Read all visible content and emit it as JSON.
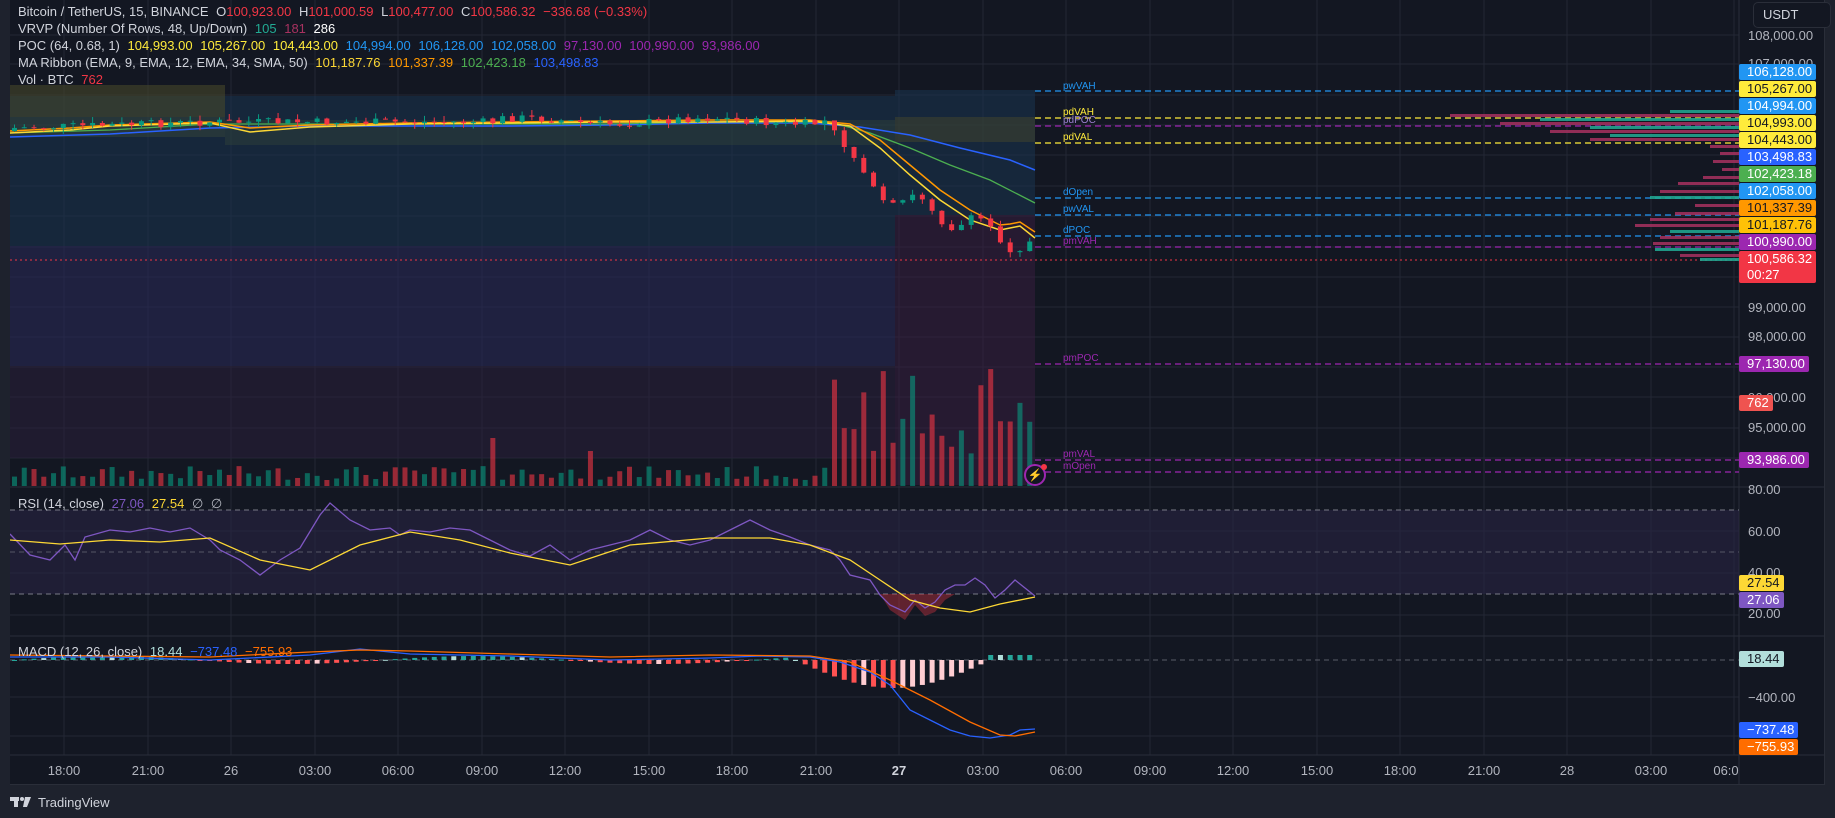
{
  "symbol": {
    "name": "Bitcoin / TetherUS",
    "interval": "15",
    "exchange": "BINANCE",
    "title": "Bitcoin / TetherUS, 15, BINANCE",
    "open_label": "O",
    "open": "100,923.00",
    "high_label": "H",
    "high": "101,000.59",
    "low_label": "L",
    "low": "100,477.00",
    "close_label": "C",
    "close": "100,586.32",
    "change": "−336.68 (−0.33%)"
  },
  "indicators": {
    "vrvp": {
      "label": "VRVP (Number Of Rows, 48, Up/Down)",
      "up": "105",
      "down": "181",
      "total": "286"
    },
    "poc": {
      "label": "POC (64, 0.68, 1)",
      "values": [
        "104,993.00",
        "105,267.00",
        "104,443.00",
        "104,994.00",
        "106,128.00",
        "102,058.00",
        "97,130.00",
        "100,990.00",
        "93,986.00"
      ]
    },
    "ma_ribbon": {
      "label": "MA Ribbon (EMA, 9, EMA, 12, EMA, 34, SMA, 50)",
      "values": [
        "101,187.76",
        "101,337.39",
        "102,423.18",
        "103,498.83"
      ]
    },
    "vol": {
      "label": "Vol · BTC",
      "value": "762"
    },
    "rsi": {
      "label": "RSI (14, close)",
      "rsi": "27.06",
      "ma": "27.54",
      "extra1": "∅",
      "extra2": "∅"
    },
    "macd": {
      "label": "MACD (12, 26, close)",
      "hist": "18.44",
      "macd": "−737.48",
      "signal": "−755.93"
    }
  },
  "currency_button": "USDT",
  "price_axis": [
    "108,000.00",
    "107,000.00",
    "99,000.00",
    "98,000.00",
    "96,000.00",
    "95,000.00"
  ],
  "rsi_axis": [
    "80.00",
    "60.00",
    "40.00",
    "20.00"
  ],
  "macd_axis": [
    "−400.00"
  ],
  "price_tags": [
    {
      "value": "106,128.00",
      "bg": "#2196f3",
      "fg": "#ffffff"
    },
    {
      "value": "105,267.00",
      "bg": "#ffeb3b",
      "fg": "#131722"
    },
    {
      "value": "104,994.00",
      "bg": "#2196f3",
      "fg": "#ffffff"
    },
    {
      "value": "104,993.00",
      "bg": "#ffeb3b",
      "fg": "#131722"
    },
    {
      "value": "104,443.00",
      "bg": "#ffeb3b",
      "fg": "#131722"
    },
    {
      "value": "103,498.83",
      "bg": "#2962ff",
      "fg": "#ffffff"
    },
    {
      "value": "102,423.18",
      "bg": "#4caf50",
      "fg": "#ffffff"
    },
    {
      "value": "102,058.00",
      "bg": "#2196f3",
      "fg": "#ffffff"
    },
    {
      "value": "101,337.39",
      "bg": "#ff9800",
      "fg": "#131722"
    },
    {
      "value": "101,187.76",
      "bg": "#ffc107",
      "fg": "#131722"
    },
    {
      "value": "100,990.00",
      "bg": "#9c27b0",
      "fg": "#ffffff"
    }
  ],
  "last_price": {
    "value": "100,586.32",
    "countdown": "00:27",
    "bg": "#f23645"
  },
  "pmpoc_tag": "97,130.00",
  "vol_tag": "762",
  "pmval_tag": "93,986.00",
  "rsi_tags": {
    "ma": "27.54",
    "rsi": "27.06"
  },
  "macd_tags": {
    "hist": "18.44",
    "macd": "−737.48",
    "signal": "−755.93"
  },
  "levels": [
    {
      "label": "pwVAH",
      "color": "#2196f3"
    },
    {
      "label": "pdVAH",
      "color": "#ffeb3b"
    },
    {
      "label": "pdPOC",
      "color": "#9c27b0"
    },
    {
      "label": "pdVAL",
      "color": "#ffeb3b"
    },
    {
      "label": "dOpen",
      "color": "#2196f3"
    },
    {
      "label": "pwVAL",
      "color": "#2196f3"
    },
    {
      "label": "dPOC",
      "color": "#2196f3"
    },
    {
      "label": "pmVAH",
      "color": "#9c27b0"
    },
    {
      "label": "pmPOC",
      "color": "#9c27b0"
    },
    {
      "label": "pmVAL",
      "color": "#9c27b0"
    },
    {
      "label": "mOpen",
      "color": "#9c27b0"
    }
  ],
  "time_axis": [
    "18:00",
    "21:00",
    "26",
    "03:00",
    "06:00",
    "09:00",
    "12:00",
    "15:00",
    "18:00",
    "21:00",
    "27",
    "03:00",
    "06:00",
    "09:00",
    "12:00",
    "15:00",
    "18:00",
    "21:00",
    "28",
    "03:00",
    "06:0"
  ],
  "footer": {
    "brand": "TradingView"
  },
  "colors": {
    "up": "#089981",
    "down": "#f23645",
    "background": "#131722",
    "rsi_line": "#7e57c2",
    "rsi_ma": "#fdd835",
    "macd_line": "#2962ff",
    "signal_line": "#ff6d00"
  }
}
